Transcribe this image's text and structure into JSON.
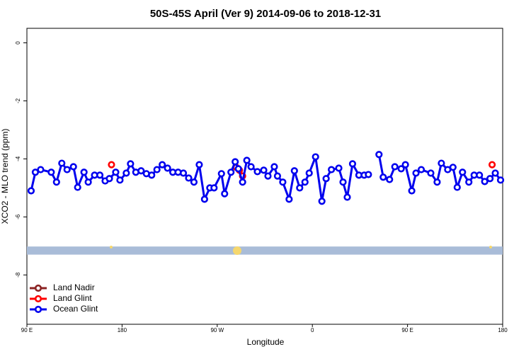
{
  "chart_data": {
    "type": "line",
    "title": "50S-45S April (Ver 9)   2014-09-06 to 2018-12-31",
    "x_label": "Longitude",
    "y_label": "XCO2 - MLO trend (ppm)",
    "xlim": [
      90,
      540
    ],
    "ylim": [
      -9.7,
      0.5
    ],
    "xticks": [
      {
        "value": 90,
        "label": "90 E"
      },
      180,
      {
        "value": 270,
        "label": "90 W"
      },
      {
        "value": 360,
        "label": "0"
      },
      {
        "value": 450,
        "label": "90 E"
      },
      {
        "value": 540,
        "label": "180"
      }
    ],
    "yticks": [
      0,
      -2,
      -4,
      -6,
      -8
    ],
    "legend": "bottom-left",
    "band": {
      "ymin": -7.3,
      "ymax": -7.02,
      "color": "#a9bcd8"
    },
    "series": [
      {
        "name": "Land Nadir",
        "color": "#8b2323",
        "x": [],
        "values": []
      },
      {
        "name": "Land Glint",
        "color": "#ff0000",
        "x": [
          170,
          229,
          288,
          291,
          294,
          412,
          530
        ],
        "values": [
          -4.2,
          null,
          -4.29,
          -4.39,
          -4.59,
          null,
          -4.2
        ]
      },
      {
        "name": "Ocean Glint",
        "color": "#0000ee",
        "x": [
          94,
          98,
          103,
          113,
          118,
          123,
          128,
          134,
          138,
          144,
          148,
          154,
          159,
          164,
          168,
          174,
          178,
          184,
          188,
          193,
          198,
          203,
          208,
          213,
          218,
          223,
          228,
          233,
          238,
          243,
          248,
          253,
          258,
          263,
          267,
          274,
          277,
          283,
          287,
          290,
          294,
          298,
          302,
          308,
          314,
          318,
          324,
          327,
          332,
          338,
          343,
          348,
          353,
          357,
          363,
          369,
          373,
          378,
          385,
          389,
          393,
          398,
          404,
          409,
          413,
          418,
          423,
          427,
          433,
          438,
          444,
          448,
          454,
          458,
          463,
          472,
          478,
          482,
          488,
          493,
          497,
          502,
          508,
          513,
          518,
          523,
          528,
          533,
          538
        ],
        "values": [
          -5.1,
          -4.46,
          -4.37,
          -4.46,
          -4.8,
          -4.15,
          -4.37,
          -4.27,
          -4.98,
          -4.46,
          -4.8,
          -4.56,
          -4.56,
          -4.76,
          -4.68,
          -4.46,
          -4.73,
          -4.49,
          -4.17,
          -4.46,
          -4.41,
          -4.51,
          -4.56,
          -4.37,
          -4.2,
          -4.32,
          -4.46,
          -4.46,
          -4.49,
          -4.66,
          -4.8,
          -4.2,
          -5.39,
          -5.0,
          -5.0,
          -4.51,
          -5.2,
          -4.46,
          -4.1,
          -4.34,
          -4.8,
          -4.05,
          -4.27,
          -4.44,
          -4.39,
          -4.59,
          -4.27,
          -4.59,
          -4.8,
          -5.39,
          -4.41,
          -5.0,
          -4.8,
          -4.49,
          -3.93,
          -5.46,
          -4.68,
          -4.37,
          -4.32,
          -4.8,
          -5.32,
          -4.17,
          -4.56,
          -4.56,
          -4.54,
          null,
          -3.85,
          -4.63,
          -4.71,
          -4.27,
          -4.34,
          -4.2,
          -5.1,
          -4.49,
          -4.37,
          -4.49,
          -4.8,
          -4.15,
          -4.37,
          -4.29,
          -4.98,
          -4.46,
          -4.8,
          -4.56,
          -4.56,
          -4.78,
          -4.68,
          -4.49,
          -4.73
        ]
      }
    ]
  }
}
